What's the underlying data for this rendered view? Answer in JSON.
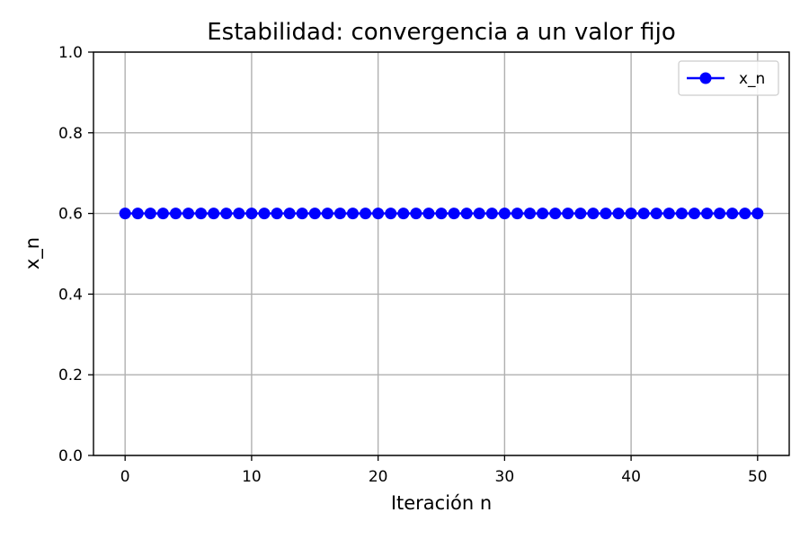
{
  "chart_data": {
    "type": "line",
    "title": "Estabilidad: convergencia a un valor fijo",
    "xlabel": "Iteración n",
    "ylabel": "x_n",
    "xlim": [
      -2.5,
      52.5
    ],
    "ylim": [
      0,
      1.0
    ],
    "x_ticks": [
      0,
      10,
      20,
      30,
      40,
      50
    ],
    "x_tick_labels": [
      "0",
      "10",
      "20",
      "30",
      "40",
      "50"
    ],
    "y_ticks": [
      0.0,
      0.2,
      0.4,
      0.6,
      0.8,
      1.0
    ],
    "y_tick_labels": [
      "0.0",
      "0.2",
      "0.4",
      "0.6",
      "0.8",
      "1.0"
    ],
    "grid": true,
    "legend_position": "top-right",
    "series": [
      {
        "name": "x_n",
        "color": "#0000ff",
        "marker": "circle",
        "x": [
          0,
          1,
          2,
          3,
          4,
          5,
          6,
          7,
          8,
          9,
          10,
          11,
          12,
          13,
          14,
          15,
          16,
          17,
          18,
          19,
          20,
          21,
          22,
          23,
          24,
          25,
          26,
          27,
          28,
          29,
          30,
          31,
          32,
          33,
          34,
          35,
          36,
          37,
          38,
          39,
          40,
          41,
          42,
          43,
          44,
          45,
          46,
          47,
          48,
          49,
          50
        ],
        "y": [
          0.6,
          0.6,
          0.6,
          0.6,
          0.6,
          0.6,
          0.6,
          0.6,
          0.6,
          0.6,
          0.6,
          0.6,
          0.6,
          0.6,
          0.6,
          0.6,
          0.6,
          0.6,
          0.6,
          0.6,
          0.6,
          0.6,
          0.6,
          0.6,
          0.6,
          0.6,
          0.6,
          0.6,
          0.6,
          0.6,
          0.6,
          0.6,
          0.6,
          0.6,
          0.6,
          0.6,
          0.6,
          0.6,
          0.6,
          0.6,
          0.6,
          0.6,
          0.6,
          0.6,
          0.6,
          0.6,
          0.6,
          0.6,
          0.6,
          0.6,
          0.6
        ]
      }
    ]
  }
}
